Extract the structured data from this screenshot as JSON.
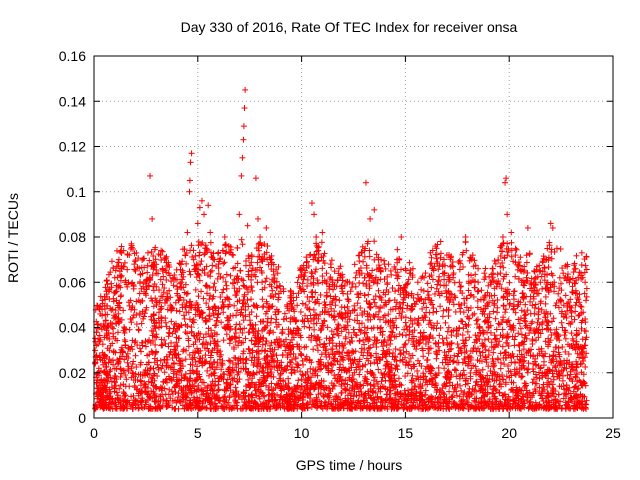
{
  "chart_data": {
    "type": "scatter",
    "title": "Day 330 of 2016, Rate Of TEC Index for receiver onsa",
    "xlabel": "GPS time / hours",
    "ylabel": "ROTI / TECUs",
    "xlim": [
      0,
      25
    ],
    "ylim": [
      0,
      0.16
    ],
    "xticks": [
      0,
      5,
      10,
      15,
      20,
      25
    ],
    "yticks": [
      0,
      0.02,
      0.04,
      0.06,
      0.08,
      0.1,
      0.12,
      0.14,
      0.16
    ],
    "xtick_labels": [
      "0",
      "5",
      "10",
      "15",
      "20",
      "25"
    ],
    "ytick_labels": [
      "0",
      "0.02",
      "0.04",
      "0.06",
      "0.08",
      "0.1",
      "0.12",
      "0.14",
      "0.16"
    ],
    "grid": true,
    "marker": "+",
    "color": "#ff0000",
    "series": [
      {
        "points": [
          [
            0.1,
            0.018
          ],
          [
            0.2,
            0.035
          ],
          [
            0.3,
            0.046
          ],
          [
            0.4,
            0.052
          ],
          [
            0.5,
            0.028
          ],
          [
            0.6,
            0.056
          ],
          [
            0.8,
            0.042
          ],
          [
            0.9,
            0.048
          ],
          [
            1.0,
            0.062
          ],
          [
            1.1,
            0.067
          ],
          [
            1.2,
            0.07
          ],
          [
            1.3,
            0.074
          ],
          [
            1.5,
            0.06
          ],
          [
            1.7,
            0.072
          ],
          [
            1.8,
            0.077
          ],
          [
            2.0,
            0.065
          ],
          [
            2.2,
            0.055
          ],
          [
            2.4,
            0.06
          ],
          [
            2.6,
            0.073
          ],
          [
            2.7,
            0.107
          ],
          [
            2.8,
            0.088
          ],
          [
            3.0,
            0.058
          ],
          [
            3.2,
            0.072
          ],
          [
            3.4,
            0.07
          ],
          [
            3.6,
            0.064
          ],
          [
            3.8,
            0.062
          ],
          [
            4.0,
            0.055
          ],
          [
            4.2,
            0.06
          ],
          [
            4.4,
            0.072
          ],
          [
            4.5,
            0.082
          ],
          [
            4.6,
            0.1
          ],
          [
            4.62,
            0.105
          ],
          [
            4.65,
            0.113
          ],
          [
            4.7,
            0.117
          ],
          [
            4.8,
            0.07
          ],
          [
            5.0,
            0.086
          ],
          [
            5.1,
            0.093
          ],
          [
            5.2,
            0.096
          ],
          [
            5.3,
            0.09
          ],
          [
            5.4,
            0.075
          ],
          [
            5.5,
            0.094
          ],
          [
            5.6,
            0.082
          ],
          [
            5.8,
            0.07
          ],
          [
            6.0,
            0.068
          ],
          [
            6.2,
            0.074
          ],
          [
            6.3,
            0.08
          ],
          [
            6.5,
            0.076
          ],
          [
            6.7,
            0.072
          ],
          [
            6.9,
            0.06
          ],
          [
            7.0,
            0.09
          ],
          [
            7.1,
            0.107
          ],
          [
            7.15,
            0.115
          ],
          [
            7.2,
            0.123
          ],
          [
            7.22,
            0.129
          ],
          [
            7.25,
            0.137
          ],
          [
            7.28,
            0.145
          ],
          [
            7.4,
            0.085
          ],
          [
            7.6,
            0.072
          ],
          [
            7.8,
            0.106
          ],
          [
            7.9,
            0.088
          ],
          [
            8.0,
            0.08
          ],
          [
            8.3,
            0.084
          ],
          [
            8.5,
            0.07
          ],
          [
            8.7,
            0.06
          ],
          [
            9.0,
            0.056
          ],
          [
            9.3,
            0.05
          ],
          [
            9.6,
            0.055
          ],
          [
            9.9,
            0.058
          ],
          [
            10.2,
            0.05
          ],
          [
            10.4,
            0.072
          ],
          [
            10.5,
            0.095
          ],
          [
            10.6,
            0.09
          ],
          [
            10.7,
            0.08
          ],
          [
            10.8,
            0.074
          ],
          [
            11.0,
            0.082
          ],
          [
            11.2,
            0.064
          ],
          [
            11.5,
            0.06
          ],
          [
            11.8,
            0.066
          ],
          [
            12.0,
            0.055
          ],
          [
            12.3,
            0.06
          ],
          [
            12.6,
            0.062
          ],
          [
            12.9,
            0.064
          ],
          [
            13.1,
            0.104
          ],
          [
            13.2,
            0.078
          ],
          [
            13.3,
            0.088
          ],
          [
            13.5,
            0.092
          ],
          [
            13.7,
            0.07
          ],
          [
            14.0,
            0.068
          ],
          [
            14.3,
            0.065
          ],
          [
            14.6,
            0.07
          ],
          [
            14.8,
            0.08
          ],
          [
            15.0,
            0.066
          ],
          [
            15.3,
            0.055
          ],
          [
            15.6,
            0.06
          ],
          [
            15.9,
            0.062
          ],
          [
            16.2,
            0.068
          ],
          [
            16.5,
            0.075
          ],
          [
            16.7,
            0.078
          ],
          [
            16.8,
            0.068
          ],
          [
            17.0,
            0.072
          ],
          [
            17.3,
            0.062
          ],
          [
            17.6,
            0.06
          ],
          [
            17.9,
            0.08
          ],
          [
            18.2,
            0.07
          ],
          [
            18.5,
            0.066
          ],
          [
            18.8,
            0.064
          ],
          [
            19.1,
            0.06
          ],
          [
            19.4,
            0.058
          ],
          [
            19.7,
            0.08
          ],
          [
            19.8,
            0.104
          ],
          [
            19.85,
            0.106
          ],
          [
            19.9,
            0.09
          ],
          [
            20.1,
            0.082
          ],
          [
            20.3,
            0.072
          ],
          [
            20.6,
            0.06
          ],
          [
            20.9,
            0.084
          ],
          [
            21.2,
            0.065
          ],
          [
            21.5,
            0.06
          ],
          [
            21.8,
            0.07
          ],
          [
            22.0,
            0.086
          ],
          [
            22.1,
            0.084
          ],
          [
            22.3,
            0.075
          ],
          [
            22.6,
            0.064
          ],
          [
            22.9,
            0.06
          ],
          [
            23.2,
            0.066
          ],
          [
            23.5,
            0.073
          ],
          [
            23.7,
            0.052
          ]
        ]
      }
    ]
  }
}
